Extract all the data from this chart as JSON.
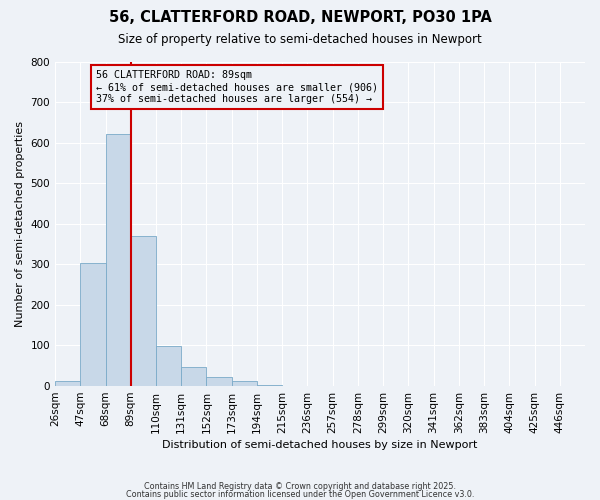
{
  "title": "56, CLATTERFORD ROAD, NEWPORT, PO30 1PA",
  "subtitle": "Size of property relative to semi-detached houses in Newport",
  "xlabel": "Distribution of semi-detached houses by size in Newport",
  "ylabel": "Number of semi-detached properties",
  "bin_labels": [
    "26sqm",
    "47sqm",
    "68sqm",
    "89sqm",
    "110sqm",
    "131sqm",
    "152sqm",
    "173sqm",
    "194sqm",
    "215sqm",
    "236sqm",
    "257sqm",
    "278sqm",
    "299sqm",
    "320sqm",
    "341sqm",
    "362sqm",
    "383sqm",
    "404sqm",
    "425sqm",
    "446sqm"
  ],
  "bin_edges": [
    26,
    47,
    68,
    89,
    110,
    131,
    152,
    173,
    194,
    215,
    236,
    257,
    278,
    299,
    320,
    341,
    362,
    383,
    404,
    425,
    446
  ],
  "bin_width": 21,
  "bar_heights": [
    12,
    303,
    621,
    370,
    98,
    47,
    22,
    12,
    2,
    0,
    0,
    0,
    0,
    0,
    0,
    0,
    0,
    0,
    0,
    0,
    0
  ],
  "bar_color": "#c8d8e8",
  "bar_edge_color": "#7aaac8",
  "property_size": 89,
  "vline_color": "#cc0000",
  "annotation_line1": "56 CLATTERFORD ROAD: 89sqm",
  "annotation_line2": "← 61% of semi-detached houses are smaller (906)",
  "annotation_line3": "37% of semi-detached houses are larger (554) →",
  "annotation_box_edgecolor": "#cc0000",
  "ylim": [
    0,
    800
  ],
  "yticks": [
    0,
    100,
    200,
    300,
    400,
    500,
    600,
    700,
    800
  ],
  "background_color": "#eef2f7",
  "grid_color": "#ffffff",
  "footer1": "Contains HM Land Registry data © Crown copyright and database right 2025.",
  "footer2": "Contains public sector information licensed under the Open Government Licence v3.0."
}
